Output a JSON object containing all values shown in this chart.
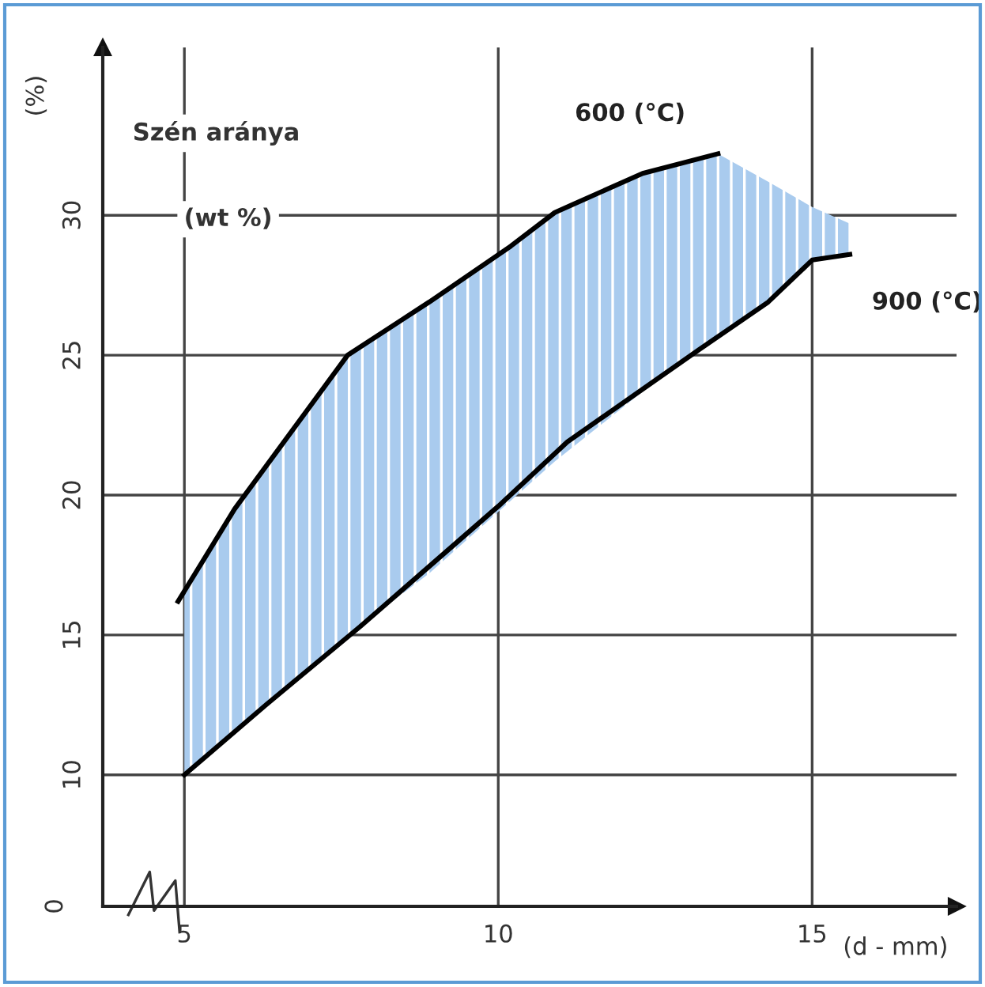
{
  "chart_data": {
    "type": "line",
    "xlabel": "(d - mm)",
    "ylabel": "(%)",
    "annotations": [
      "Szén aránya",
      "(wt %)",
      "0"
    ],
    "xlim": [
      3.7,
      17.3
    ],
    "xticks": [
      5,
      10,
      15
    ],
    "ylim": [
      5.3,
      36
    ],
    "yticks": [
      10,
      15,
      20,
      25,
      30
    ],
    "grid": true,
    "legend": false,
    "marker": "none",
    "line_style": "solid",
    "series": [
      {
        "name": "600 (°C)",
        "color": "#000000",
        "x": [
          4.9,
          5.8,
          7.6,
          8.9,
          10.2,
          10.9,
          12.3,
          13.5
        ],
        "values": [
          16.2,
          19.5,
          25,
          26.9,
          28.9,
          30.1,
          31.5,
          32.2
        ]
      },
      {
        "name": "900 (°C)",
        "color": "#000000",
        "x": [
          5,
          6.3,
          7.8,
          10,
          11.1,
          13.2,
          14.3,
          15,
          15.6
        ],
        "values": [
          10,
          12.5,
          15.3,
          19.6,
          21.9,
          25.2,
          26.9,
          28.4,
          28.6
        ]
      },
      {
        "type": "area",
        "color": "#a9cbee",
        "x": [
          5,
          5.8,
          7.6,
          8.9,
          10.2,
          10.9,
          12.3,
          13.5,
          14.3,
          15,
          15.6
        ],
        "values": [
          null,
          null,
          null,
          null,
          null,
          null,
          null,
          null,
          null,
          null,
          null
        ],
        "lower": [
          10,
          11.5,
          15.0,
          17.2,
          19.8,
          21.2,
          23.7,
          25.6,
          26.9,
          28.4,
          28.6
        ],
        "upper": [
          16.4,
          19.5,
          25,
          26.9,
          28.9,
          30.1,
          31.5,
          32.2,
          31.2,
          30.3,
          29.7
        ]
      }
    ]
  }
}
